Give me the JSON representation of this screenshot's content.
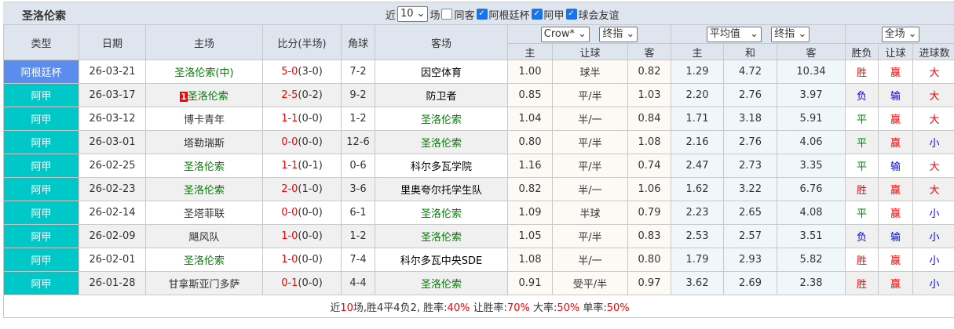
{
  "title": "圣洛伦索",
  "filters": {
    "recent_prefix": "近",
    "count": "10",
    "recent_suffix": "场",
    "same_host": "同客",
    "same_host_checked": false,
    "leagues": [
      {
        "label": "阿根廷杯",
        "checked": true
      },
      {
        "label": "阿甲",
        "checked": true
      },
      {
        "label": "球会友谊",
        "checked": true
      }
    ]
  },
  "headers": {
    "type": "类型",
    "date": "日期",
    "home": "主场",
    "score": "比分(半场)",
    "corner": "角球",
    "away": "客场",
    "company": "Crow*",
    "odds_kind": "终指",
    "avg": "平均值",
    "avg_kind": "终指",
    "period": "全场",
    "sub": [
      "主",
      "让球",
      "客",
      "主",
      "和",
      "客",
      "胜负",
      "让球",
      "进球数"
    ]
  },
  "colors": {
    "cup": "#5b8def",
    "league": "#00c8c8",
    "win": "#ff0000",
    "loss": "#0000ff",
    "draw": "#008000"
  },
  "rows": [
    {
      "type": "阿根廷杯",
      "type_color": "#5b8def",
      "date": "26-03-21",
      "home": "圣洛伦索(中)",
      "home_team": true,
      "rank": "",
      "ft": "5-0",
      "ht": "(3-0)",
      "corner": "7-2",
      "away": "因空体育",
      "away_team": false,
      "h": "1.00",
      "line": "球半",
      "a": "0.82",
      "ah": "1.29",
      "ad": "4.72",
      "aa": "10.34",
      "res": "胜",
      "hc": "赢",
      "ou": "大"
    },
    {
      "type": "阿甲",
      "type_color": "#00c8c8",
      "date": "26-03-17",
      "home": "圣洛伦索",
      "home_team": true,
      "rank": "1",
      "ft": "2-5",
      "ht": "(0-2)",
      "corner": "9-2",
      "away": "防卫者",
      "away_team": false,
      "h": "0.85",
      "line": "平/半",
      "a": "1.03",
      "ah": "2.20",
      "ad": "2.76",
      "aa": "3.97",
      "res": "负",
      "hc": "输",
      "ou": "大"
    },
    {
      "type": "阿甲",
      "type_color": "#00c8c8",
      "date": "26-03-12",
      "home": "博卡青年",
      "home_team": false,
      "rank": "",
      "ft": "1-1",
      "ht": "(0-0)",
      "corner": "1-2",
      "away": "圣洛伦索",
      "away_team": true,
      "h": "1.04",
      "line": "半/一",
      "a": "0.84",
      "ah": "1.71",
      "ad": "3.18",
      "aa": "5.91",
      "res": "平",
      "hc": "赢",
      "ou": "大"
    },
    {
      "type": "阿甲",
      "type_color": "#00c8c8",
      "date": "26-03-01",
      "home": "塔勒瑞斯",
      "home_team": false,
      "rank": "",
      "ft": "0-0",
      "ht": "(0-0)",
      "corner": "12-6",
      "away": "圣洛伦索",
      "away_team": true,
      "h": "0.80",
      "line": "平/半",
      "a": "1.08",
      "ah": "2.16",
      "ad": "2.76",
      "aa": "4.06",
      "res": "平",
      "hc": "赢",
      "ou": "小"
    },
    {
      "type": "阿甲",
      "type_color": "#00c8c8",
      "date": "26-02-25",
      "home": "圣洛伦索",
      "home_team": true,
      "rank": "",
      "ft": "1-1",
      "ht": "(0-1)",
      "corner": "0-6",
      "away": "科尔多瓦学院",
      "away_team": false,
      "h": "1.16",
      "line": "平/半",
      "a": "0.74",
      "ah": "2.47",
      "ad": "2.73",
      "aa": "3.35",
      "res": "平",
      "hc": "输",
      "ou": "大"
    },
    {
      "type": "阿甲",
      "type_color": "#00c8c8",
      "date": "26-02-23",
      "home": "圣洛伦索",
      "home_team": true,
      "rank": "",
      "ft": "2-0",
      "ht": "(1-0)",
      "corner": "3-6",
      "away": "里奥夸尔托学生队",
      "away_team": false,
      "h": "0.82",
      "line": "半/一",
      "a": "1.06",
      "ah": "1.62",
      "ad": "3.22",
      "aa": "6.76",
      "res": "胜",
      "hc": "赢",
      "ou": "大"
    },
    {
      "type": "阿甲",
      "type_color": "#00c8c8",
      "date": "26-02-14",
      "home": "圣塔菲联",
      "home_team": false,
      "rank": "",
      "ft": "0-0",
      "ht": "(0-0)",
      "corner": "6-1",
      "away": "圣洛伦索",
      "away_team": true,
      "h": "1.09",
      "line": "半球",
      "a": "0.79",
      "ah": "2.23",
      "ad": "2.65",
      "aa": "4.08",
      "res": "平",
      "hc": "赢",
      "ou": "小"
    },
    {
      "type": "阿甲",
      "type_color": "#00c8c8",
      "date": "26-02-09",
      "home": "飓风队",
      "home_team": false,
      "rank": "",
      "ft": "1-0",
      "ht": "(0-0)",
      "corner": "1-2",
      "away": "圣洛伦索",
      "away_team": true,
      "h": "1.05",
      "line": "平/半",
      "a": "0.83",
      "ah": "2.53",
      "ad": "2.57",
      "aa": "3.51",
      "res": "负",
      "hc": "输",
      "ou": "小"
    },
    {
      "type": "阿甲",
      "type_color": "#00c8c8",
      "date": "26-02-01",
      "home": "圣洛伦索",
      "home_team": true,
      "rank": "",
      "ft": "1-0",
      "ht": "(0-0)",
      "corner": "7-4",
      "away": "科尔多瓦中央SDE",
      "away_team": false,
      "h": "1.08",
      "line": "半/一",
      "a": "0.80",
      "ah": "1.79",
      "ad": "2.93",
      "aa": "5.82",
      "res": "胜",
      "hc": "赢",
      "ou": "小"
    },
    {
      "type": "阿甲",
      "type_color": "#00c8c8",
      "date": "26-01-28",
      "home": "甘拿斯亚门多萨",
      "home_team": false,
      "rank": "",
      "ft": "0-1",
      "ht": "(0-0)",
      "corner": "4-4",
      "away": "圣洛伦索",
      "away_team": true,
      "h": "0.91",
      "line": "受平/半",
      "a": "0.97",
      "ah": "3.62",
      "ad": "2.69",
      "aa": "2.38",
      "res": "胜",
      "hc": "赢",
      "ou": "小"
    }
  ],
  "summary": {
    "p1": "近",
    "n": "10",
    "p2": "场,胜4平4负2, 胜率:",
    "win": "40%",
    "p3": " 让胜率:",
    "hc": "70%",
    "p4": " 大率:",
    "big": "50%",
    "p5": " 单率:",
    "odd": "50%"
  }
}
